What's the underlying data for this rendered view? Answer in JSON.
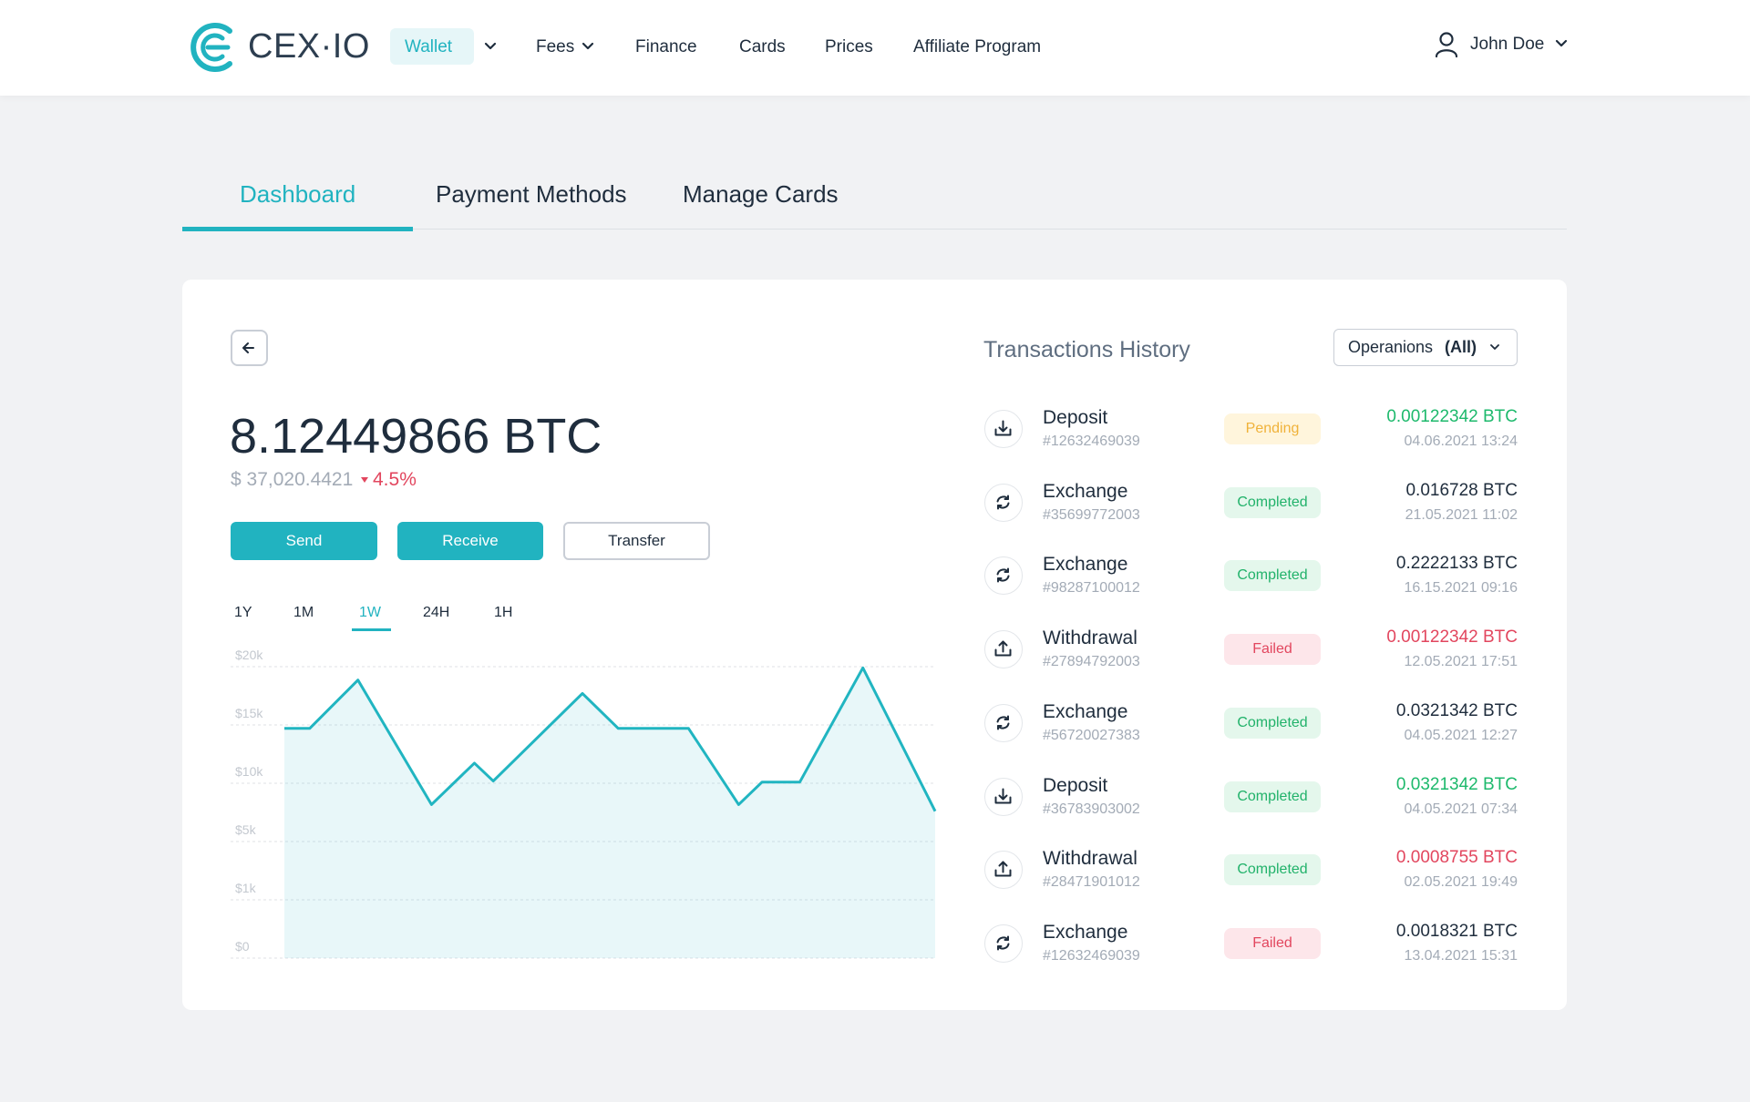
{
  "header": {
    "logo": "CEX·IO",
    "nav": [
      "Wallet",
      "Fees",
      "Finance",
      "Cards",
      "Prices",
      "Affiliate Program"
    ],
    "user": "John Doe"
  },
  "tabs": [
    "Dashboard",
    "Payment Methods",
    "Manage Cards"
  ],
  "wallet": {
    "balance": "8.12449866 BTC",
    "fiat": "$ 37,020.4421",
    "change": "4.5%",
    "actions": [
      "Send",
      "Receive",
      "Transfer"
    ],
    "periods": [
      "1Y",
      "1M",
      "1W",
      "24H",
      "1H"
    ]
  },
  "chart_data": {
    "type": "area",
    "x": [
      0,
      3.9,
      11.3,
      22.6,
      29.2,
      32.1,
      45.8,
      51.3,
      62.1,
      69.8,
      73.4,
      79.2,
      88.9,
      100
    ],
    "values": [
      14700,
      14700,
      18850,
      8170,
      11730,
      10190,
      17700,
      14700,
      14700,
      8170,
      10100,
      10100,
      19900,
      7600
    ],
    "xlim": [
      0,
      100
    ],
    "ylim": [
      0,
      20000
    ],
    "yticks": [
      {
        "value": 20000,
        "label": "$20k"
      },
      {
        "value": 15000,
        "label": "$15k"
      },
      {
        "value": 10000,
        "label": "$10k"
      },
      {
        "value": 5000,
        "label": "$5k"
      },
      {
        "value": 1000,
        "label": "$1k"
      },
      {
        "value": 0,
        "label": "$0"
      }
    ],
    "color": "#21b5c1",
    "grid": true
  },
  "transactions": {
    "title": "Transactions History",
    "filter_label": "Operanions",
    "filter_value": "(All)",
    "rows": [
      {
        "icon": "download",
        "type": "Deposit",
        "id": "#12632469039",
        "status": "Pending",
        "tone": "pending",
        "amount": "0.00122342 BTC",
        "amount_color": "green",
        "date": "04.06.2021 13:24"
      },
      {
        "icon": "exchange",
        "type": "Exchange",
        "id": "#35699772003",
        "status": "Completed",
        "tone": "completed",
        "amount": "0.016728 BTC",
        "amount_color": "dark",
        "date": "21.05.2021 11:02"
      },
      {
        "icon": "exchange",
        "type": "Exchange",
        "id": "#98287100012",
        "status": "Completed",
        "tone": "completed",
        "amount": "0.2222133 BTC",
        "amount_color": "dark",
        "date": "16.15.2021 09:16"
      },
      {
        "icon": "upload",
        "type": "Withdrawal",
        "id": "#27894792003",
        "status": "Failed",
        "tone": "failed",
        "amount": "0.00122342 BTC",
        "amount_color": "red",
        "date": "12.05.2021 17:51"
      },
      {
        "icon": "exchange",
        "type": "Exchange",
        "id": "#56720027383",
        "status": "Completed",
        "tone": "completed",
        "amount": "0.0321342 BTC",
        "amount_color": "dark",
        "date": "04.05.2021 12:27"
      },
      {
        "icon": "download",
        "type": "Deposit",
        "id": "#36783903002",
        "status": "Completed",
        "tone": "completed",
        "amount": "0.0321342 BTC",
        "amount_color": "green",
        "date": "04.05.2021 07:34"
      },
      {
        "icon": "upload",
        "type": "Withdrawal",
        "id": "#28471901012",
        "status": "Completed",
        "tone": "completed",
        "amount": "0.0008755 BTC",
        "amount_color": "red",
        "date": "02.05.2021 19:49"
      },
      {
        "icon": "exchange",
        "type": "Exchange",
        "id": "#12632469039",
        "status": "Failed",
        "tone": "failed",
        "amount": "0.0018321 BTC",
        "amount_color": "dark",
        "date": "13.04.2021 15:31"
      }
    ]
  }
}
